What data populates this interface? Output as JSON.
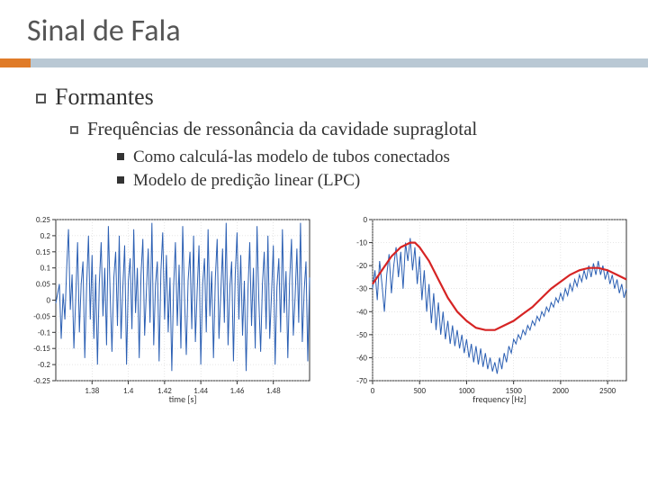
{
  "title": "Sinal de Fala",
  "bullets": {
    "l1": "Formantes",
    "l2": "Frequências de ressonância da cavidade supraglotal",
    "l3a": "Como calculá-las  modelo de tubos conectados",
    "l3b": "Modelo de predição linear (LPC)"
  },
  "chart_left": {
    "xlabel": "time [s]",
    "xlim": [
      1.36,
      1.5
    ],
    "ylim": [
      -0.25,
      0.25
    ],
    "xticks": [
      1.38,
      1.4,
      1.42,
      1.44,
      1.46,
      1.48
    ],
    "yticks": [
      -0.25,
      -0.2,
      -0.15,
      -0.1,
      -0.05,
      0,
      0.05,
      0.1,
      0.15,
      0.2,
      0.25
    ],
    "yticklabels": [
      "-0.25",
      "-0.2",
      "-0.15",
      "-0.1",
      "-0.05",
      "0",
      "0.05",
      "0.1",
      "0.15",
      "0.2",
      "0.25"
    ],
    "line_color": "#2b5fb3",
    "grid_color": "#cccccc",
    "background": "#ffffff",
    "data": [
      [
        1.36,
        -0.01
      ],
      [
        1.362,
        0.05
      ],
      [
        1.363,
        -0.12
      ],
      [
        1.364,
        0.02
      ],
      [
        1.365,
        -0.06
      ],
      [
        1.366,
        0.1
      ],
      [
        1.367,
        0.22
      ],
      [
        1.368,
        -0.03
      ],
      [
        1.369,
        0.08
      ],
      [
        1.37,
        -0.15
      ],
      [
        1.371,
        0.01
      ],
      [
        1.372,
        0.18
      ],
      [
        1.373,
        -0.1
      ],
      [
        1.374,
        0.05
      ],
      [
        1.375,
        0.12
      ],
      [
        1.376,
        -0.18
      ],
      [
        1.377,
        0.04
      ],
      [
        1.378,
        0.2
      ],
      [
        1.379,
        -0.06
      ],
      [
        1.38,
        0.14
      ],
      [
        1.381,
        -0.12
      ],
      [
        1.382,
        0.08
      ],
      [
        1.383,
        -0.2
      ],
      [
        1.384,
        0.05
      ],
      [
        1.385,
        0.18
      ],
      [
        1.386,
        -0.05
      ],
      [
        1.387,
        0.1
      ],
      [
        1.388,
        -0.14
      ],
      [
        1.389,
        0.23
      ],
      [
        1.39,
        0.02
      ],
      [
        1.391,
        -0.16
      ],
      [
        1.392,
        0.07
      ],
      [
        1.393,
        0.15
      ],
      [
        1.394,
        -0.08
      ],
      [
        1.395,
        0.2
      ],
      [
        1.396,
        -0.12
      ],
      [
        1.397,
        0.04
      ],
      [
        1.398,
        0.17
      ],
      [
        1.399,
        -0.2
      ],
      [
        1.4,
        0.06
      ],
      [
        1.401,
        0.13
      ],
      [
        1.402,
        -0.09
      ],
      [
        1.403,
        0.22
      ],
      [
        1.404,
        -0.04
      ],
      [
        1.405,
        0.1
      ],
      [
        1.406,
        -0.18
      ],
      [
        1.407,
        0.08
      ],
      [
        1.408,
        0.19
      ],
      [
        1.409,
        -0.11
      ],
      [
        1.41,
        0.03
      ],
      [
        1.411,
        0.16
      ],
      [
        1.412,
        -0.07
      ],
      [
        1.413,
        0.24
      ],
      [
        1.414,
        -0.14
      ],
      [
        1.415,
        0.05
      ],
      [
        1.416,
        0.12
      ],
      [
        1.417,
        -0.19
      ],
      [
        1.418,
        0.09
      ],
      [
        1.419,
        0.21
      ],
      [
        1.42,
        -0.06
      ],
      [
        1.421,
        0.14
      ],
      [
        1.422,
        -0.1
      ],
      [
        1.423,
        0.07
      ],
      [
        1.424,
        -0.22
      ],
      [
        1.425,
        0.04
      ],
      [
        1.426,
        0.18
      ],
      [
        1.427,
        -0.08
      ],
      [
        1.428,
        0.11
      ],
      [
        1.429,
        -0.15
      ],
      [
        1.43,
        0.23
      ],
      [
        1.431,
        0.01
      ],
      [
        1.432,
        -0.17
      ],
      [
        1.433,
        0.06
      ],
      [
        1.434,
        0.15
      ],
      [
        1.435,
        -0.09
      ],
      [
        1.436,
        0.2
      ],
      [
        1.437,
        -0.13
      ],
      [
        1.438,
        0.03
      ],
      [
        1.439,
        0.17
      ],
      [
        1.44,
        -0.2
      ],
      [
        1.441,
        0.05
      ],
      [
        1.442,
        0.13
      ],
      [
        1.443,
        -0.1
      ],
      [
        1.444,
        0.22
      ],
      [
        1.445,
        -0.05
      ],
      [
        1.446,
        0.09
      ],
      [
        1.447,
        -0.18
      ],
      [
        1.448,
        0.07
      ],
      [
        1.449,
        0.19
      ],
      [
        1.45,
        -0.12
      ],
      [
        1.451,
        0.02
      ],
      [
        1.452,
        0.16
      ],
      [
        1.453,
        -0.07
      ],
      [
        1.454,
        0.24
      ],
      [
        1.455,
        -0.14
      ],
      [
        1.456,
        0.04
      ],
      [
        1.457,
        0.12
      ],
      [
        1.458,
        -0.19
      ],
      [
        1.459,
        0.08
      ],
      [
        1.46,
        0.21
      ],
      [
        1.461,
        -0.06
      ],
      [
        1.462,
        0.14
      ],
      [
        1.463,
        -0.11
      ],
      [
        1.464,
        0.06
      ],
      [
        1.465,
        -0.22
      ],
      [
        1.466,
        0.03
      ],
      [
        1.467,
        0.18
      ],
      [
        1.468,
        -0.08
      ],
      [
        1.469,
        0.1
      ],
      [
        1.47,
        -0.15
      ],
      [
        1.471,
        0.23
      ],
      [
        1.472,
        0.0
      ],
      [
        1.473,
        -0.16
      ],
      [
        1.474,
        0.05
      ],
      [
        1.475,
        0.15
      ],
      [
        1.476,
        -0.09
      ],
      [
        1.477,
        0.2
      ],
      [
        1.478,
        -0.12
      ],
      [
        1.479,
        0.02
      ],
      [
        1.48,
        0.17
      ],
      [
        1.481,
        -0.2
      ],
      [
        1.482,
        0.04
      ],
      [
        1.483,
        0.13
      ],
      [
        1.484,
        -0.1
      ],
      [
        1.485,
        0.22
      ],
      [
        1.486,
        -0.04
      ],
      [
        1.487,
        0.09
      ],
      [
        1.488,
        -0.18
      ],
      [
        1.489,
        0.06
      ],
      [
        1.49,
        0.19
      ],
      [
        1.491,
        -0.11
      ],
      [
        1.492,
        0.01
      ],
      [
        1.493,
        0.16
      ],
      [
        1.494,
        -0.07
      ],
      [
        1.495,
        0.24
      ],
      [
        1.496,
        -0.13
      ],
      [
        1.497,
        0.03
      ],
      [
        1.498,
        0.12
      ],
      [
        1.499,
        -0.19
      ],
      [
        1.5,
        0.07
      ]
    ]
  },
  "chart_right": {
    "xlabel": "frequency [Hz]",
    "xlim": [
      0,
      2700
    ],
    "ylim": [
      -70,
      0
    ],
    "xticks": [
      0,
      500,
      1000,
      1500,
      2000,
      2500
    ],
    "yticks": [
      -70,
      -60,
      -50,
      -40,
      -30,
      -20,
      -10,
      0
    ],
    "yticklabels": [
      "-70",
      "-60",
      "-50",
      "-40",
      "-30",
      "-20",
      "-10",
      "0"
    ],
    "blue_color": "#2b5fb3",
    "red_color": "#d62424",
    "grid_color": "#cccccc",
    "background": "#ffffff",
    "blue_data": [
      [
        0,
        -30
      ],
      [
        25,
        -22
      ],
      [
        50,
        -35
      ],
      [
        75,
        -18
      ],
      [
        100,
        -28
      ],
      [
        125,
        -40
      ],
      [
        150,
        -24
      ],
      [
        175,
        -15
      ],
      [
        200,
        -32
      ],
      [
        225,
        -20
      ],
      [
        250,
        -12
      ],
      [
        275,
        -25
      ],
      [
        300,
        -14
      ],
      [
        325,
        -30
      ],
      [
        350,
        -10
      ],
      [
        375,
        -18
      ],
      [
        400,
        -8
      ],
      [
        425,
        -22
      ],
      [
        450,
        -12
      ],
      [
        475,
        -28
      ],
      [
        500,
        -16
      ],
      [
        525,
        -35
      ],
      [
        550,
        -22
      ],
      [
        575,
        -40
      ],
      [
        600,
        -28
      ],
      [
        625,
        -45
      ],
      [
        650,
        -32
      ],
      [
        675,
        -48
      ],
      [
        700,
        -36
      ],
      [
        725,
        -50
      ],
      [
        750,
        -40
      ],
      [
        775,
        -52
      ],
      [
        800,
        -44
      ],
      [
        825,
        -54
      ],
      [
        850,
        -46
      ],
      [
        875,
        -55
      ],
      [
        900,
        -48
      ],
      [
        925,
        -56
      ],
      [
        950,
        -50
      ],
      [
        975,
        -58
      ],
      [
        1000,
        -52
      ],
      [
        1025,
        -60
      ],
      [
        1050,
        -54
      ],
      [
        1075,
        -62
      ],
      [
        1100,
        -55
      ],
      [
        1125,
        -63
      ],
      [
        1150,
        -56
      ],
      [
        1175,
        -64
      ],
      [
        1200,
        -58
      ],
      [
        1225,
        -65
      ],
      [
        1250,
        -60
      ],
      [
        1275,
        -66
      ],
      [
        1300,
        -62
      ],
      [
        1325,
        -67
      ],
      [
        1350,
        -60
      ],
      [
        1375,
        -65
      ],
      [
        1400,
        -58
      ],
      [
        1425,
        -62
      ],
      [
        1450,
        -55
      ],
      [
        1475,
        -58
      ],
      [
        1500,
        -52
      ],
      [
        1525,
        -54
      ],
      [
        1550,
        -50
      ],
      [
        1575,
        -52
      ],
      [
        1600,
        -48
      ],
      [
        1625,
        -50
      ],
      [
        1650,
        -46
      ],
      [
        1675,
        -48
      ],
      [
        1700,
        -44
      ],
      [
        1725,
        -46
      ],
      [
        1750,
        -42
      ],
      [
        1775,
        -44
      ],
      [
        1800,
        -40
      ],
      [
        1825,
        -42
      ],
      [
        1850,
        -38
      ],
      [
        1875,
        -40
      ],
      [
        1900,
        -36
      ],
      [
        1925,
        -38
      ],
      [
        1950,
        -34
      ],
      [
        1975,
        -36
      ],
      [
        2000,
        -32
      ],
      [
        2025,
        -35
      ],
      [
        2050,
        -30
      ],
      [
        2075,
        -33
      ],
      [
        2100,
        -28
      ],
      [
        2125,
        -31
      ],
      [
        2150,
        -26
      ],
      [
        2175,
        -29
      ],
      [
        2200,
        -24
      ],
      [
        2225,
        -27
      ],
      [
        2250,
        -22
      ],
      [
        2275,
        -26
      ],
      [
        2300,
        -20
      ],
      [
        2325,
        -25
      ],
      [
        2350,
        -19
      ],
      [
        2375,
        -24
      ],
      [
        2400,
        -18
      ],
      [
        2425,
        -24
      ],
      [
        2450,
        -20
      ],
      [
        2475,
        -26
      ],
      [
        2500,
        -22
      ],
      [
        2525,
        -28
      ],
      [
        2550,
        -24
      ],
      [
        2575,
        -30
      ],
      [
        2600,
        -26
      ],
      [
        2625,
        -32
      ],
      [
        2650,
        -28
      ],
      [
        2675,
        -34
      ],
      [
        2700,
        -30
      ]
    ],
    "red_data": [
      [
        0,
        -28
      ],
      [
        100,
        -22
      ],
      [
        200,
        -16
      ],
      [
        300,
        -12
      ],
      [
        400,
        -10
      ],
      [
        450,
        -10
      ],
      [
        500,
        -12
      ],
      [
        600,
        -18
      ],
      [
        700,
        -26
      ],
      [
        800,
        -34
      ],
      [
        900,
        -40
      ],
      [
        1000,
        -44
      ],
      [
        1100,
        -47
      ],
      [
        1200,
        -48
      ],
      [
        1300,
        -48
      ],
      [
        1400,
        -46
      ],
      [
        1500,
        -44
      ],
      [
        1600,
        -41
      ],
      [
        1700,
        -38
      ],
      [
        1800,
        -34
      ],
      [
        1900,
        -30
      ],
      [
        2000,
        -27
      ],
      [
        2100,
        -24
      ],
      [
        2200,
        -22
      ],
      [
        2300,
        -21
      ],
      [
        2400,
        -21
      ],
      [
        2500,
        -22
      ],
      [
        2600,
        -24
      ],
      [
        2700,
        -26
      ]
    ]
  }
}
